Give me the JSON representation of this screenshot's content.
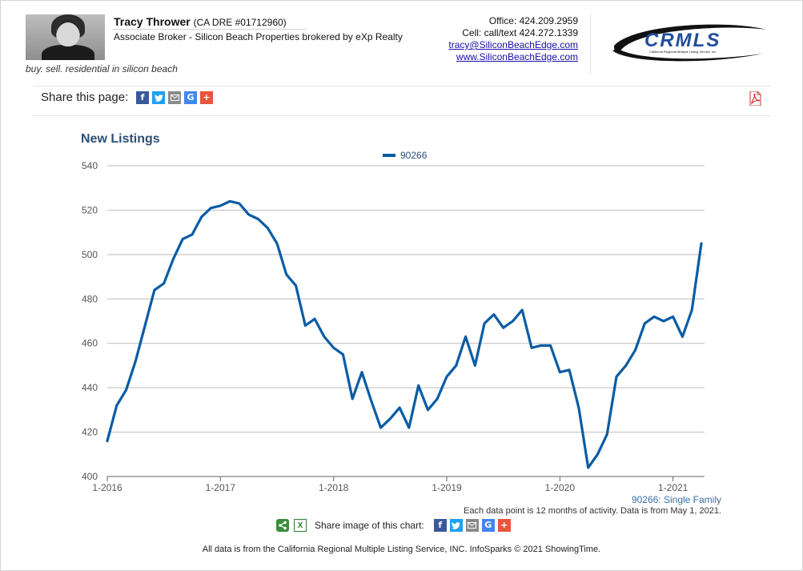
{
  "agent": {
    "name": "Tracy Thrower",
    "dre": "(CA DRE #01712960)",
    "title": "Associate Broker - Silicon Beach Properties brokered by eXp Realty",
    "tagline": "buy. sell. residential in silicon beach"
  },
  "contact": {
    "office": "Office: 424.209.2959",
    "cell": "Cell: call/text 424.272.1339",
    "email": "tracy@SiliconBeachEdge.com",
    "website": "www.SiliconBeachEdge.com"
  },
  "logo": {
    "text": "CRMLS",
    "subtext": "California Regional Multiple Listing Service, Inc.",
    "color": "#1f4e9c"
  },
  "share": {
    "label": "Share this page:",
    "icons": [
      "facebook-icon",
      "twitter-icon",
      "email-icon",
      "google-icon",
      "plus-icon"
    ]
  },
  "chart_data": {
    "type": "line",
    "title": "New Listings",
    "legend_position": "top-center",
    "grid": true,
    "series_color": "#0a5ca4",
    "series": [
      {
        "name": "90266",
        "x": [
          "1-2016",
          "2-2016",
          "3-2016",
          "4-2016",
          "5-2016",
          "6-2016",
          "7-2016",
          "8-2016",
          "9-2016",
          "10-2016",
          "11-2016",
          "12-2016",
          "1-2017",
          "2-2017",
          "3-2017",
          "4-2017",
          "5-2017",
          "6-2017",
          "7-2017",
          "8-2017",
          "9-2017",
          "10-2017",
          "11-2017",
          "12-2017",
          "1-2018",
          "2-2018",
          "3-2018",
          "4-2018",
          "5-2018",
          "6-2018",
          "7-2018",
          "8-2018",
          "9-2018",
          "10-2018",
          "11-2018",
          "12-2018",
          "1-2019",
          "2-2019",
          "3-2019",
          "4-2019",
          "5-2019",
          "6-2019",
          "7-2019",
          "8-2019",
          "9-2019",
          "10-2019",
          "11-2019",
          "12-2019",
          "1-2020",
          "2-2020",
          "3-2020",
          "4-2020",
          "5-2020",
          "6-2020",
          "7-2020",
          "8-2020",
          "9-2020",
          "10-2020",
          "11-2020",
          "12-2020",
          "1-2021",
          "2-2021",
          "3-2021",
          "4-2021"
        ],
        "values": [
          416,
          432,
          439,
          452,
          468,
          484,
          487,
          498,
          507,
          509,
          517,
          521,
          522,
          524,
          523,
          518,
          516,
          512,
          505,
          491,
          486,
          468,
          471,
          463,
          458,
          455,
          435,
          447,
          434,
          422,
          426,
          431,
          422,
          441,
          430,
          435,
          445,
          450,
          463,
          450,
          469,
          473,
          467,
          470,
          475,
          458,
          459,
          459,
          447,
          448,
          431,
          404,
          410,
          419,
          445,
          450,
          457,
          469,
          472,
          470,
          472,
          463,
          475,
          505
        ]
      }
    ],
    "x_ticks": [
      "1-2016",
      "1-2017",
      "1-2018",
      "1-2019",
      "1-2020",
      "1-2021"
    ],
    "y_ticks": [
      400,
      420,
      440,
      460,
      480,
      500,
      520,
      540
    ],
    "ylim": [
      400,
      540
    ],
    "series_note": "90266: Single Family",
    "footnote": "Each data point is 12 months of activity. Data is from May 1, 2021."
  },
  "share_image": {
    "label": "Share image of this chart:"
  },
  "bottom_note": "All data is from the California Regional Multiple Listing Service, INC. InfoSparks © 2021 ShowingTime."
}
